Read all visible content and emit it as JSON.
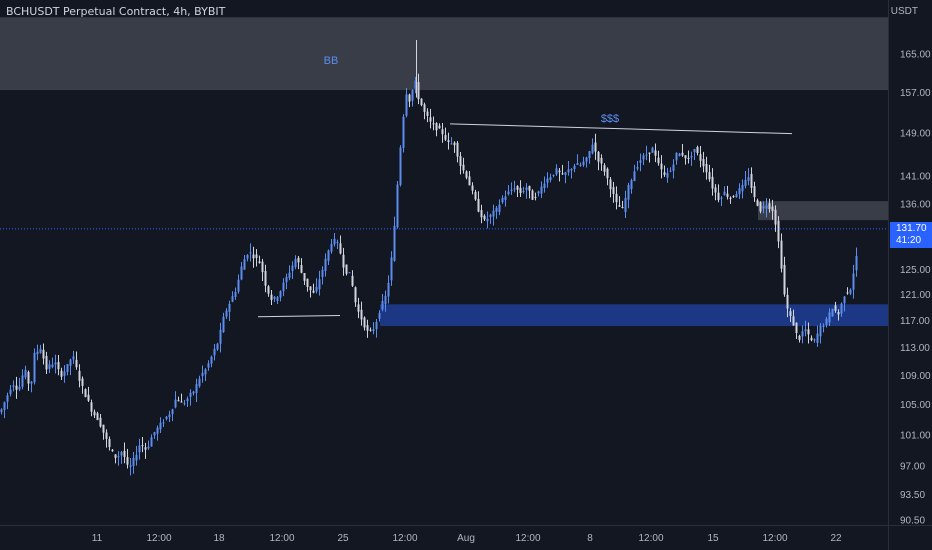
{
  "header": {
    "title": "BCHUSDT Perpetual Contract, 4h, BYBIT",
    "currency": "USDT"
  },
  "price_badge": {
    "price": "131.70",
    "countdown": "41:20"
  },
  "colors": {
    "background": "#131722",
    "bull": "#5b8def",
    "bear": "#d1d4dc",
    "zone_blue": "#2962ff",
    "zone_gray": "#787b86"
  },
  "chart_data": {
    "type": "candlestick",
    "title": "BCHUSDT Perpetual Contract, 4h, BYBIT",
    "y_axis": {
      "scale": "log",
      "ylim": [
        89.7,
        180
      ],
      "ticks": [
        165.0,
        157.0,
        149.0,
        141.0,
        136.0,
        125.0,
        121.0,
        117.0,
        113.0,
        109.0,
        105.0,
        101.0,
        97.0,
        93.5,
        90.5
      ],
      "tick_labels": [
        "165.00",
        "157.00",
        "149.00",
        "141.00",
        "136.00",
        "125.00",
        "121.00",
        "117.00",
        "113.00",
        "109.00",
        "105.00",
        "101.00",
        "97.00",
        "93.50",
        "90.50"
      ]
    },
    "x_axis": {
      "tick_labels": [
        "11",
        "12:00",
        "18",
        "12:00",
        "25",
        "12:00",
        "Aug",
        "12:00",
        "8",
        "12:00",
        "15",
        "12:00",
        "22"
      ]
    },
    "current_price": 131.7,
    "annotations": [
      {
        "type": "zone",
        "label": "BB",
        "from": 157.5,
        "to": 173.0,
        "color": "gray"
      },
      {
        "type": "zone",
        "label": "",
        "from": 116.2,
        "to": 119.5,
        "color": "blue"
      },
      {
        "type": "zone",
        "label": "",
        "from": 133.2,
        "to": 136.5,
        "color": "gray"
      },
      {
        "type": "trendline",
        "label": "$$$",
        "y_start": 150.8,
        "y_end": 148.9
      },
      {
        "type": "trendline",
        "label": "",
        "y_start": 117.6,
        "y_end": 117.8
      }
    ],
    "candle_path": [
      [
        0,
        104
      ],
      [
        6,
        106
      ],
      [
        12,
        108
      ],
      [
        18,
        107
      ],
      [
        24,
        110
      ],
      [
        30,
        107
      ],
      [
        34,
        112
      ],
      [
        40,
        113
      ],
      [
        46,
        110
      ],
      [
        54,
        111
      ],
      [
        60,
        109
      ],
      [
        66,
        110
      ],
      [
        72,
        112
      ],
      [
        80,
        108
      ],
      [
        86,
        106
      ],
      [
        92,
        104
      ],
      [
        98,
        103
      ],
      [
        104,
        101
      ],
      [
        110,
        99
      ],
      [
        116,
        98
      ],
      [
        122,
        99
      ],
      [
        128,
        96.5
      ],
      [
        134,
        98
      ],
      [
        140,
        100
      ],
      [
        146,
        99
      ],
      [
        152,
        101
      ],
      [
        158,
        102
      ],
      [
        164,
        103
      ],
      [
        170,
        104
      ],
      [
        176,
        106
      ],
      [
        182,
        105
      ],
      [
        188,
        106
      ],
      [
        194,
        107
      ],
      [
        200,
        109
      ],
      [
        206,
        110
      ],
      [
        212,
        112
      ],
      [
        218,
        114
      ],
      [
        224,
        118
      ],
      [
        230,
        120
      ],
      [
        236,
        122
      ],
      [
        242,
        126
      ],
      [
        248,
        128
      ],
      [
        254,
        127
      ],
      [
        260,
        126
      ],
      [
        266,
        122
      ],
      [
        272,
        120
      ],
      [
        278,
        121
      ],
      [
        284,
        123
      ],
      [
        290,
        125
      ],
      [
        296,
        127
      ],
      [
        302,
        124
      ],
      [
        308,
        122
      ],
      [
        314,
        121
      ],
      [
        320,
        124
      ],
      [
        326,
        127
      ],
      [
        332,
        130
      ],
      [
        338,
        129
      ],
      [
        344,
        125
      ],
      [
        350,
        124
      ],
      [
        356,
        119
      ],
      [
        362,
        117
      ],
      [
        368,
        115
      ],
      [
        374,
        116
      ],
      [
        380,
        119
      ],
      [
        386,
        121
      ],
      [
        390,
        125
      ],
      [
        394,
        132
      ],
      [
        398,
        142
      ],
      [
        402,
        151
      ],
      [
        406,
        157
      ],
      [
        410,
        155
      ],
      [
        414,
        160
      ],
      [
        418,
        156
      ],
      [
        424,
        153
      ],
      [
        430,
        151
      ],
      [
        436,
        150
      ],
      [
        442,
        149
      ],
      [
        448,
        147
      ],
      [
        454,
        147
      ],
      [
        460,
        143
      ],
      [
        466,
        141
      ],
      [
        472,
        138
      ],
      [
        478,
        135
      ],
      [
        484,
        133
      ],
      [
        490,
        134
      ],
      [
        496,
        135
      ],
      [
        502,
        137
      ],
      [
        508,
        138
      ],
      [
        514,
        139
      ],
      [
        520,
        138
      ],
      [
        526,
        139
      ],
      [
        532,
        137
      ],
      [
        538,
        138
      ],
      [
        544,
        140
      ],
      [
        550,
        141
      ],
      [
        556,
        142
      ],
      [
        562,
        141
      ],
      [
        568,
        142
      ],
      [
        574,
        143
      ],
      [
        580,
        143
      ],
      [
        586,
        144
      ],
      [
        592,
        147
      ],
      [
        598,
        144
      ],
      [
        604,
        142
      ],
      [
        610,
        139
      ],
      [
        616,
        136
      ],
      [
        622,
        135
      ],
      [
        628,
        139
      ],
      [
        634,
        142
      ],
      [
        640,
        144
      ],
      [
        646,
        145
      ],
      [
        652,
        146
      ],
      [
        658,
        143
      ],
      [
        664,
        141
      ],
      [
        670,
        142
      ],
      [
        676,
        145
      ],
      [
        682,
        145
      ],
      [
        688,
        144
      ],
      [
        694,
        146
      ],
      [
        700,
        144
      ],
      [
        706,
        142
      ],
      [
        712,
        139
      ],
      [
        718,
        137
      ],
      [
        724,
        138
      ],
      [
        730,
        137
      ],
      [
        736,
        138
      ],
      [
        742,
        139
      ],
      [
        748,
        141
      ],
      [
        754,
        137
      ],
      [
        760,
        135
      ],
      [
        766,
        136
      ],
      [
        772,
        135
      ],
      [
        776,
        132
      ],
      [
        780,
        127
      ],
      [
        784,
        121
      ],
      [
        788,
        118
      ],
      [
        792,
        117
      ],
      [
        798,
        114
      ],
      [
        804,
        116
      ],
      [
        810,
        114
      ],
      [
        814,
        114
      ],
      [
        820,
        116
      ],
      [
        826,
        117
      ],
      [
        832,
        119
      ],
      [
        838,
        118
      ],
      [
        844,
        121
      ],
      [
        850,
        122
      ],
      [
        856,
        127
      ],
      [
        858,
        131.7
      ]
    ]
  }
}
